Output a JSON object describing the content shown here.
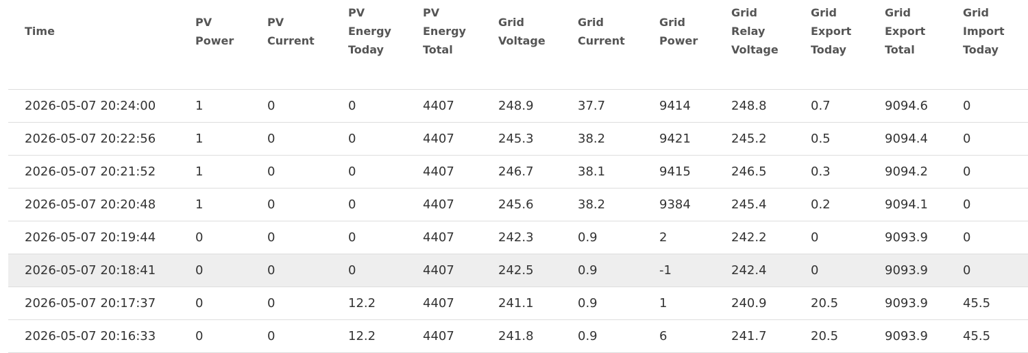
{
  "table": {
    "columns": [
      "Time",
      "PV Power",
      "PV Current",
      "PV Energy Today",
      "PV Energy Total",
      "Grid Voltage",
      "Grid Current",
      "Grid Power",
      "Grid Relay Voltage",
      "Grid Export Today",
      "Grid Export Total",
      "Grid Import Today"
    ],
    "rows": [
      [
        "2026-05-07 20:24:00",
        1,
        0,
        0,
        4407,
        248.9,
        37.7,
        9414,
        248.8,
        0.7,
        9094.6,
        0
      ],
      [
        "2026-05-07 20:22:56",
        1,
        0,
        0,
        4407,
        245.3,
        38.2,
        9421,
        245.2,
        0.5,
        9094.4,
        0
      ],
      [
        "2026-05-07 20:21:52",
        1,
        0,
        0,
        4407,
        246.7,
        38.1,
        9415,
        246.5,
        0.3,
        9094.2,
        0
      ],
      [
        "2026-05-07 20:20:48",
        1,
        0,
        0,
        4407,
        245.6,
        38.2,
        9384,
        245.4,
        0.2,
        9094.1,
        0
      ],
      [
        "2026-05-07 20:19:44",
        0,
        0,
        0,
        4407,
        242.3,
        0.9,
        2,
        242.2,
        0,
        9093.9,
        0
      ],
      [
        "2026-05-07 20:18:41",
        0,
        0,
        0,
        4407,
        242.5,
        0.9,
        -1,
        242.4,
        0,
        9093.9,
        0
      ],
      [
        "2026-05-07 20:17:37",
        0,
        0,
        12.2,
        4407,
        241.1,
        0.9,
        1,
        240.9,
        20.5,
        9093.9,
        45.5
      ],
      [
        "2026-05-07 20:16:33",
        0,
        0,
        12.2,
        4407,
        241.8,
        0.9,
        6,
        241.7,
        20.5,
        9093.9,
        45.5
      ]
    ]
  }
}
